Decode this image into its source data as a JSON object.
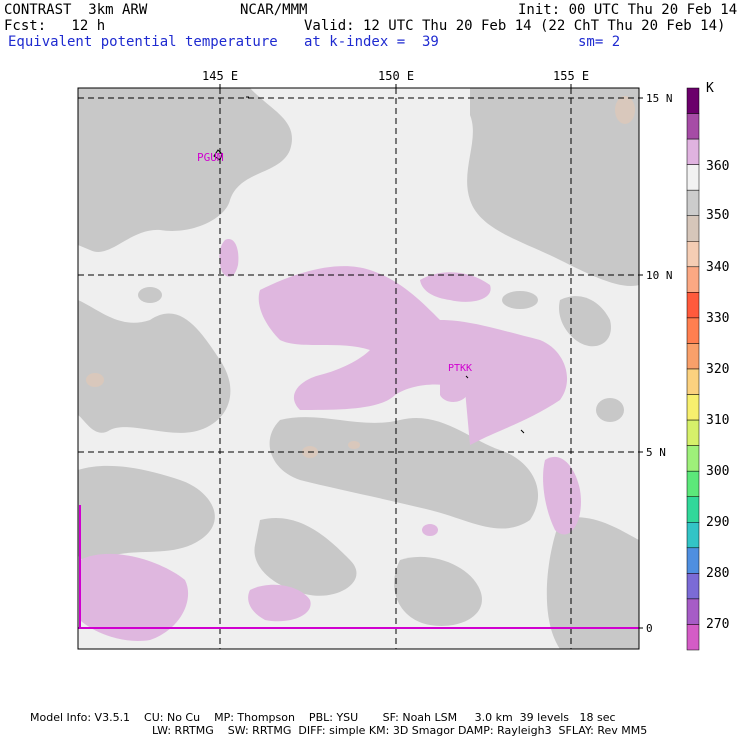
{
  "header": {
    "left1": "CONTRAST  3km ARW",
    "left2": "Fcst:   12 h",
    "center1": "NCAR/MMM",
    "init": "Init: 00 UTC Thu 20 Feb 14",
    "valid": "Valid: 12 UTC Thu 20 Feb 14 (22 ChT Thu 20 Feb 14)",
    "field": "Equivalent potential temperature",
    "level": "at k-index =  39",
    "smooth": "sm= 2"
  },
  "axes": {
    "lon_labels": [
      "145 E",
      "150 E",
      "155 E"
    ],
    "lat_labels": [
      "15 N",
      "10 N",
      "5 N",
      "0"
    ]
  },
  "stations": [
    "PGUM",
    "PTKK"
  ],
  "legend": {
    "unit": "K",
    "labels": [
      "360",
      "350",
      "340",
      "330",
      "320",
      "310",
      "300",
      "290",
      "280",
      "270"
    ],
    "colors": [
      "#6b006b",
      "#a64ca6",
      "#e0b3e0",
      "#f2f2f2",
      "#cccccc",
      "#d6c6ba",
      "#f5cdb4",
      "#fba883",
      "#ff5a3c",
      "#ff7f50",
      "#f9a06a",
      "#fbd17f",
      "#f7ef6e",
      "#d6f06a",
      "#9ef07a",
      "#5ce87a",
      "#31d89a",
      "#33c4c6",
      "#4f8fe0",
      "#7b6bd6",
      "#a65cc6",
      "#d45cc6"
    ]
  },
  "footer": {
    "line1": "Model Info: V3.5.1    CU: No Cu    MP: Thompson    PBL: YSU       SF: Noah LSM     3.0 km  39 levels   18 sec",
    "line2": "LW: RRTMG    SW: RRTMG  DIFF: simple KM: 3D Smagor DAMP: Rayleigh3  SFLAY: Rev MM5"
  }
}
